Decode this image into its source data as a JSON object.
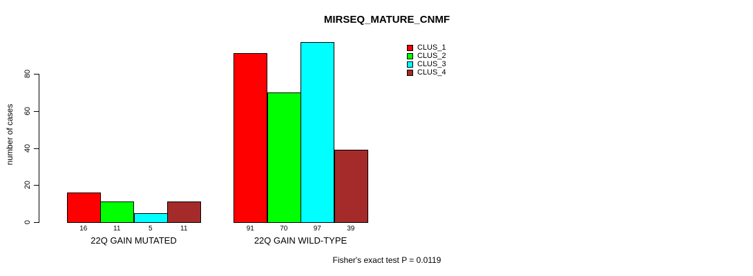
{
  "title": "MIRSEQ_MATURE_CNMF",
  "footnote": "Fisher's exact test P = 0.0119",
  "chart_data": {
    "type": "bar",
    "title": "MIRSEQ_MATURE_CNMF",
    "xlabel": "",
    "ylabel": "number of cases",
    "ylim": [
      0,
      80
    ],
    "yticks": [
      0,
      20,
      40,
      60,
      80
    ],
    "grid": false,
    "legend_position": "top-right",
    "bar_value_labels": true,
    "categories": [
      "22Q GAIN MUTATED",
      "22Q GAIN WILD-TYPE"
    ],
    "series": [
      {
        "name": "CLUS_1",
        "color": "#ff0000",
        "values": [
          16,
          91
        ]
      },
      {
        "name": "CLUS_2",
        "color": "#00ff00",
        "values": [
          11,
          70
        ]
      },
      {
        "name": "CLUS_3",
        "color": "#00ffff",
        "values": [
          5,
          97
        ]
      },
      {
        "name": "CLUS_4",
        "color": "#a52a2a",
        "values": [
          11,
          39
        ]
      }
    ],
    "footnote": "Fisher's exact test P = 0.0119"
  }
}
